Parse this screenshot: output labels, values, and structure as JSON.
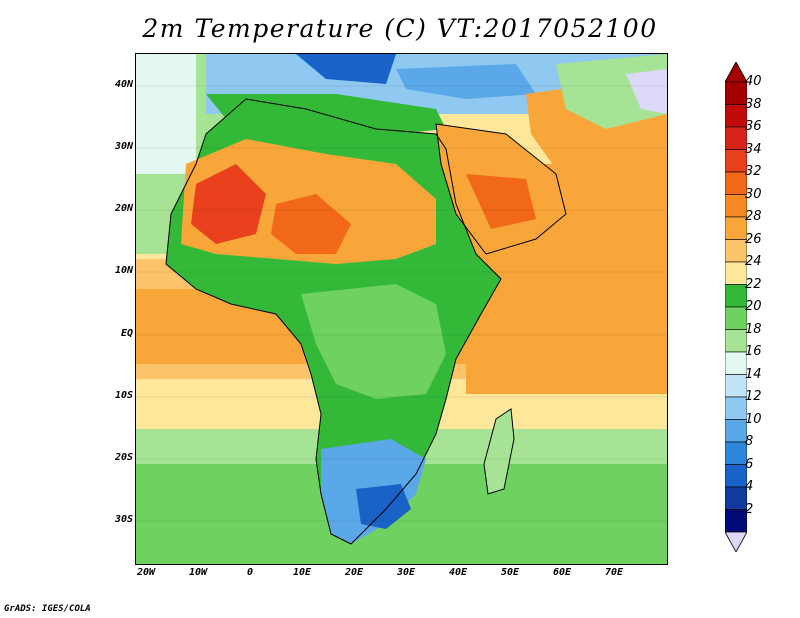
{
  "title": "2m Temperature (C) VT:2017052100",
  "footer": "GrADS: IGES/COLA",
  "lat_labels": [
    "40N",
    "30N",
    "20N",
    "10N",
    "EQ",
    "10S",
    "20S",
    "30S"
  ],
  "lon_labels": [
    "20W",
    "10W",
    "0",
    "10E",
    "20E",
    "30E",
    "40E",
    "50E",
    "60E",
    "70E"
  ],
  "colorbar": {
    "labels": [
      "40",
      "38",
      "36",
      "34",
      "32",
      "30",
      "28",
      "26",
      "24",
      "22",
      "20",
      "18",
      "16",
      "14",
      "12",
      "10",
      "8",
      "6",
      "4",
      "2"
    ],
    "colors": [
      "#a50000",
      "#c10a0a",
      "#d82418",
      "#e8401c",
      "#f06818",
      "#f58a22",
      "#f8a63a",
      "#fbc46a",
      "#fde79a",
      "#33b838",
      "#6ed160",
      "#a6e394",
      "#e3f8f0",
      "#c2e3f8",
      "#8fc8f0",
      "#5aa8e8",
      "#2f86dd",
      "#1862c8",
      "#0e3b9c",
      "#000b78"
    ],
    "over_color": "#a50000",
    "under_color": "#dcd8f8"
  },
  "palette": {
    "ocean_warm": "#f8a63a",
    "ocean_mid": "#fbc46a",
    "ocean_cool": "#fde79a",
    "sea_cold": "#6ed160",
    "land_green": "#33b838",
    "hot_core": "#d82418",
    "cold_south": "#2f86dd",
    "med_sea": "#5aa8e8"
  }
}
